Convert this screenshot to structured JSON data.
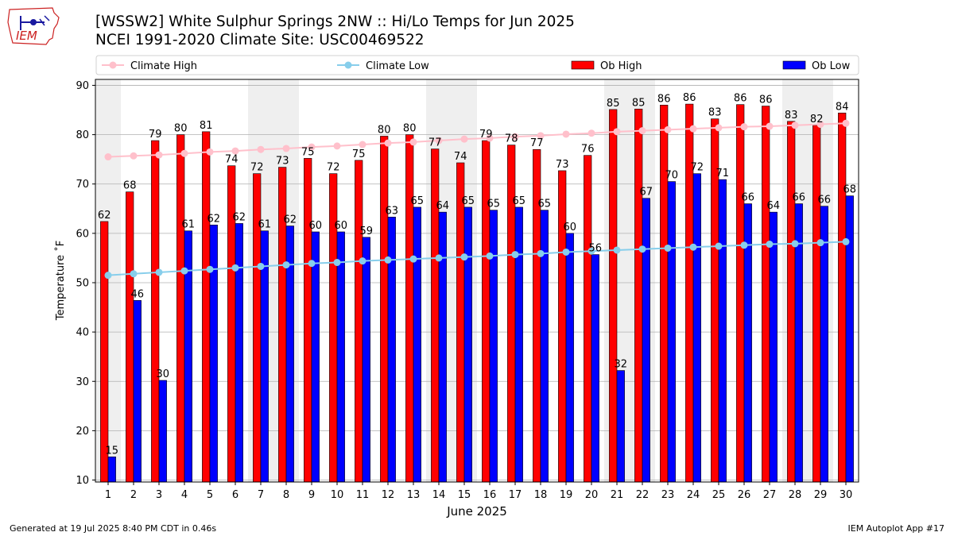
{
  "header": {
    "title_line1": "[WSSW2] White Sulphur Springs 2NW :: Hi/Lo Temps for Jun 2025",
    "title_line2": "NCEI 1991-2020 Climate Site: USC00469522"
  },
  "logo": {
    "text": "IEM"
  },
  "footer": {
    "left": "Generated at 19 Jul 2025 8:40 PM CDT in 0.46s",
    "right": "IEM Autoplot App #17"
  },
  "chart_data": {
    "type": "bar",
    "xlabel": "June 2025",
    "ylabel": "Temperature ˚F",
    "ylim": [
      9.6,
      91.2
    ],
    "yticks": [
      10,
      20,
      30,
      40,
      50,
      60,
      70,
      80,
      90
    ],
    "grid": "y",
    "legend_position": "top",
    "weekend_shading_days": [
      1,
      7,
      8,
      14,
      15,
      21,
      22,
      28,
      29
    ],
    "colors": {
      "ob_high": "#ff0000",
      "ob_low": "#0000ff",
      "climate_high": "#ffc0cb",
      "climate_low": "#87ceeb",
      "weekend": "#efefef"
    },
    "categories": [
      "1",
      "2",
      "3",
      "4",
      "5",
      "6",
      "7",
      "8",
      "9",
      "10",
      "11",
      "12",
      "13",
      "14",
      "15",
      "16",
      "17",
      "18",
      "19",
      "20",
      "21",
      "22",
      "23",
      "24",
      "25",
      "26",
      "27",
      "28",
      "29",
      "30"
    ],
    "series": [
      {
        "name": "Ob High",
        "kind": "bar",
        "values": [
          62.4,
          68.4,
          78.8,
          80,
          80.6,
          73.7,
          72.1,
          73.4,
          75.2,
          72.1,
          74.8,
          79.7,
          80,
          77.1,
          74.3,
          78.8,
          77.9,
          77,
          72.7,
          75.8,
          85.1,
          85.2,
          86,
          86.2,
          83.2,
          86.1,
          85.8,
          82.7,
          81.9,
          84.4
        ],
        "labels": [
          "62",
          "68",
          "79",
          "80",
          "81",
          "74",
          "72",
          "73",
          "75",
          "72",
          "75",
          "80",
          "80",
          "77",
          "74",
          "79",
          "78",
          "77",
          "73",
          "76",
          "85",
          "85",
          "86",
          "86",
          "83",
          "86",
          "86",
          "83",
          "82",
          "84"
        ]
      },
      {
        "name": "Ob Low",
        "kind": "bar",
        "values": [
          14.7,
          46.4,
          30.2,
          60.5,
          61.7,
          62,
          60.5,
          61.5,
          60.3,
          60.3,
          59.2,
          63.3,
          65.3,
          64.3,
          65.3,
          64.7,
          65.3,
          64.7,
          60,
          55.7,
          32.2,
          67.1,
          70.5,
          72.1,
          70.9,
          66,
          64.3,
          66,
          65.5,
          67.6
        ],
        "labels": [
          "15",
          "46",
          "30",
          "61",
          "62",
          "62",
          "61",
          "62",
          "60",
          "60",
          "59",
          "63",
          "65",
          "64",
          "65",
          "65",
          "65",
          "65",
          "60",
          "56",
          "32",
          "67",
          "70",
          "72",
          "71",
          "66",
          "64",
          "66",
          "66",
          "68"
        ]
      },
      {
        "name": "Climate High",
        "kind": "line",
        "values": [
          75.5,
          75.7,
          75.9,
          76.2,
          76.5,
          76.7,
          77,
          77.2,
          77.5,
          77.7,
          78,
          78.3,
          78.5,
          78.8,
          79.1,
          79.3,
          79.6,
          79.8,
          80.1,
          80.3,
          80.6,
          80.8,
          81,
          81.2,
          81.4,
          81.6,
          81.7,
          81.9,
          82.1,
          82.3
        ]
      },
      {
        "name": "Climate Low",
        "kind": "line",
        "values": [
          51.5,
          51.8,
          52.1,
          52.4,
          52.7,
          53,
          53.3,
          53.6,
          53.9,
          54.1,
          54.4,
          54.6,
          54.8,
          55,
          55.2,
          55.4,
          55.7,
          55.9,
          56.2,
          56.4,
          56.6,
          56.8,
          57,
          57.2,
          57.4,
          57.6,
          57.8,
          57.9,
          58.1,
          58.3
        ]
      }
    ]
  }
}
